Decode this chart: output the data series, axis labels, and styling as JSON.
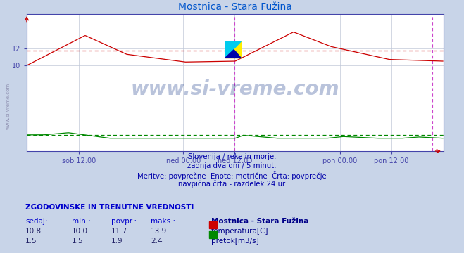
{
  "title": "Mostnica - Stara Fužina",
  "title_color": "#0055cc",
  "bg_color": "#c8d4e8",
  "plot_bg_color": "#ffffff",
  "grid_color": "#c0c8d8",
  "xlim": [
    0,
    575
  ],
  "ylim": [
    0,
    16
  ],
  "temp_avg": 11.7,
  "flow_avg": 1.9,
  "temp_color": "#cc0000",
  "flow_color": "#008800",
  "vline_color": "#cc44cc",
  "vline_positions": [
    287,
    559
  ],
  "tick_positions": [
    72,
    216,
    287,
    432,
    503
  ],
  "tick_labels": [
    "sob 12:00",
    "ned 00:00",
    "ned 12:00",
    "pon 00:00",
    "pon 12:00"
  ],
  "yticks": [
    10,
    12
  ],
  "watermark": "www.si-vreme.com",
  "watermark_color": "#1a3a8a",
  "watermark_alpha": 0.3,
  "footer_lines": [
    "Slovenija / reke in morje.",
    "zadnja dva dni / 5 minut.",
    "Meritve: povprečne  Enote: metrične  Črta: povprečje",
    "navpična črta - razdelek 24 ur"
  ],
  "footer_color": "#0000aa",
  "table_header": "ZGODOVINSKE IN TRENUTNE VREDNOSTI",
  "table_header_color": "#0000cc",
  "table_cols": [
    "sedaj:",
    "min.:",
    "povpr.:",
    "maks.:"
  ],
  "table_col_color": "#0000cc",
  "table_data": [
    [
      10.8,
      10.0,
      11.7,
      13.9
    ],
    [
      1.5,
      1.5,
      1.9,
      2.4
    ]
  ],
  "legend_title": "Mostnica - Stara Fužina",
  "legend_items": [
    "temperatura[C]",
    "pretok[m3/s]"
  ],
  "legend_colors": [
    "#cc0000",
    "#008800"
  ],
  "n_points": 575,
  "spine_color": "#4444aa"
}
